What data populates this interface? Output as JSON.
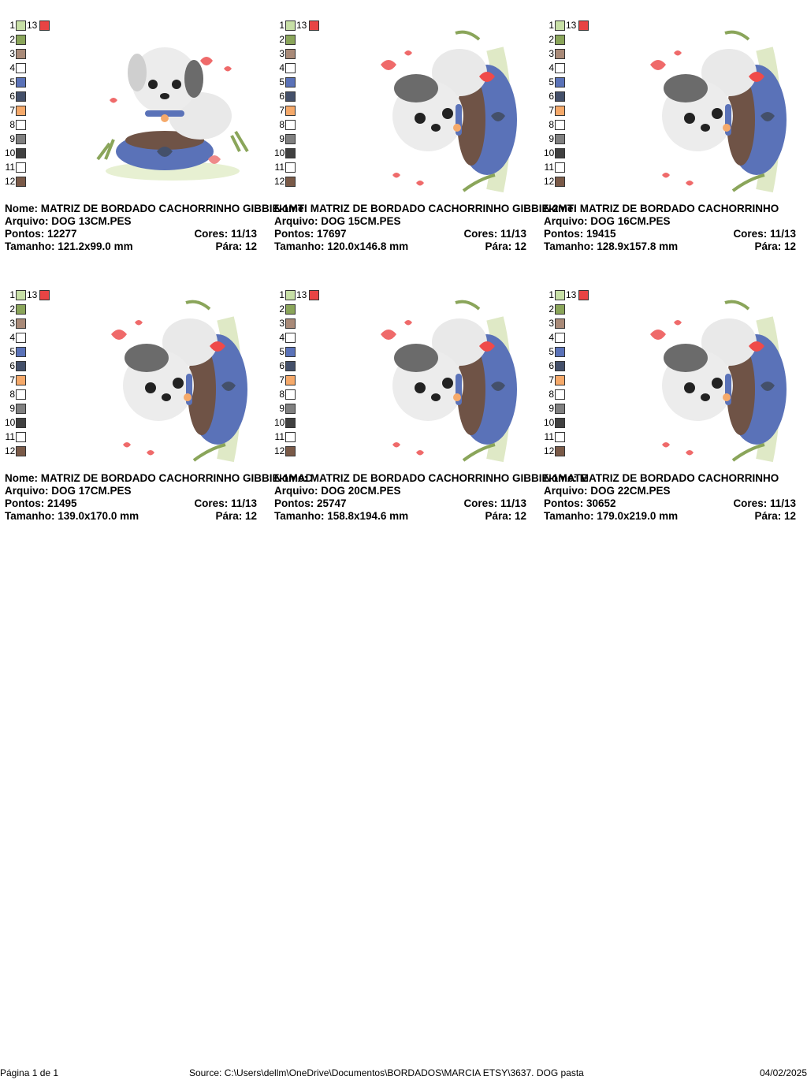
{
  "palette": {
    "colors": [
      "#c7dfa6",
      "#8aa55a",
      "#a98a78",
      "#ffffff",
      "#5a72b8",
      "#44506a",
      "#f5a96a",
      "#ffffff",
      "#808080",
      "#404040",
      "#ffffff",
      "#7a5a48"
    ],
    "extra_label": "13",
    "extra_color": "#e84444",
    "numbers": [
      "1",
      "2",
      "3",
      "4",
      "5",
      "6",
      "7",
      "8",
      "9",
      "10",
      "11",
      "12"
    ]
  },
  "cards": [
    {
      "nome": "Nome: MATRIZ DE BORDADO CACHORRINHO GIBBIE-1MTI",
      "arquivo": "Arquivo: DOG 13CM.PES",
      "pontos": "Pontos: 12277",
      "cores": "Cores: 11/13",
      "tamanho": "Tamanho: 121.2x99.0 mm",
      "para": "Pára: 12"
    },
    {
      "nome": "Nome: MATRIZ DE BORDADO CACHORRINHO GIBBIE-2MTI",
      "arquivo": "Arquivo: DOG 15CM.PES",
      "pontos": "Pontos: 17697",
      "cores": "Cores: 11/13",
      "tamanho": "Tamanho: 120.0x146.8 mm",
      "para": "Pára: 12"
    },
    {
      "nome": "Nome: MATRIZ DE BORDADO CACHORRINHO",
      "arquivo": "Arquivo: DOG 16CM.PES",
      "pontos": "Pontos: 19415",
      "cores": "Cores: 11/13",
      "tamanho": "Tamanho: 128.9x157.8 mm",
      "para": "Pára: 12"
    },
    {
      "nome": "Nome: MATRIZ DE BORDADO CACHORRINHO GIBBIE-1MAD",
      "arquivo": "Arquivo: DOG 17CM.PES",
      "pontos": "Pontos: 21495",
      "cores": "Cores: 11/13",
      "tamanho": "Tamanho: 139.0x170.0 mm",
      "para": "Pára: 12"
    },
    {
      "nome": "Nome: MATRIZ DE BORDADO CACHORRINHO GIBBIE-1MATE",
      "arquivo": "Arquivo: DOG 20CM.PES",
      "pontos": "Pontos: 25747",
      "cores": "Cores: 11/13",
      "tamanho": "Tamanho: 158.8x194.6 mm",
      "para": "Pára: 12"
    },
    {
      "nome": "Nome: MATRIZ DE BORDADO CACHORRINHO",
      "arquivo": "Arquivo: DOG 22CM.PES",
      "pontos": "Pontos: 30652",
      "cores": "Cores: 11/13",
      "tamanho": "Tamanho: 179.0x219.0 mm",
      "para": "Pára: 12"
    }
  ],
  "footer": {
    "page": "Página 1 de 1",
    "source": "Source: C:\\Users\\dellm\\OneDrive\\Documentos\\BORDADOS\\MARCIA ETSY\\3637. DOG pasta",
    "date": "04/02/2025"
  }
}
